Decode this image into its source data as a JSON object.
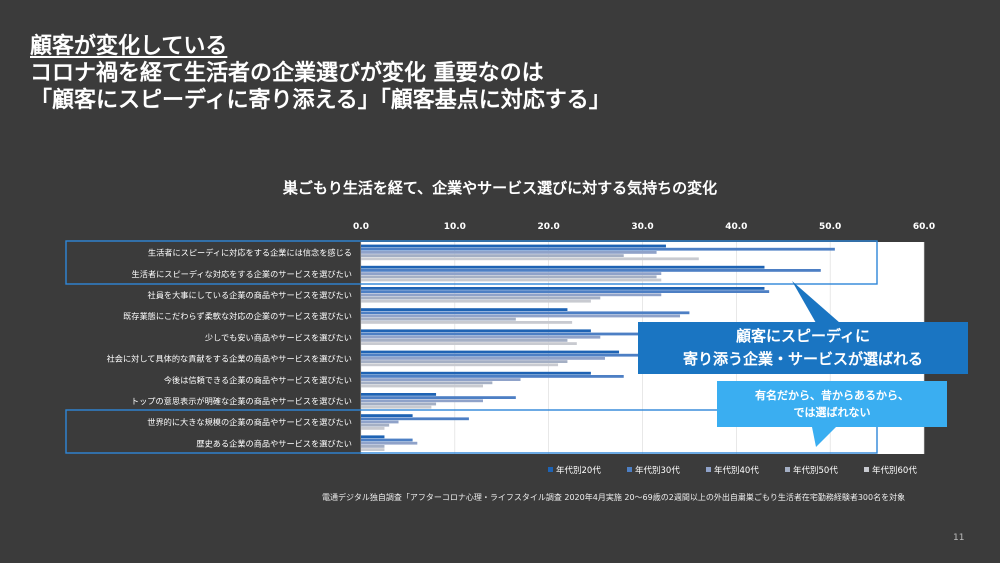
{
  "headline": {
    "line1": "顧客が変化している",
    "line2": "コロナ禍を経て生活者の企業選びが変化 重要なのは",
    "line3": "「顧客にスピーディに寄り添える」「顧客基点に対応する」"
  },
  "callouts": {
    "blue_line1": "顧客にスピーディに",
    "blue_line2": "寄り添う企業・サービスが選ばれる",
    "light_line1": "有名だから、昔からあるから、",
    "light_line2": "では選ばれない"
  },
  "source": "電通デジタル独自調査「アフターコロナ心理・ライフスタイル調査 2020年4月実施 20〜69歳の2週間以上の外出自粛巣ごもり生活者在宅勤務経験者300名を対象",
  "page_number": "11",
  "colors": {
    "background": "#3b3b3b",
    "callout_blue": "#1a75c2",
    "callout_light": "#3aaef1",
    "highlight_box": "#2e86d8"
  },
  "chart_data": {
    "type": "bar",
    "orientation": "horizontal",
    "title": "巣ごもり生活を経て、企業やサービス選びに対する気持ちの変化",
    "xlim": [
      0,
      60
    ],
    "ticks": [
      "0.0",
      "10.0",
      "20.0",
      "30.0",
      "40.0",
      "50.0",
      "60.0"
    ],
    "legend_position": "bottom",
    "categories": [
      "生活者にスピーディに対応をする企業には信念を感じる",
      "生活者にスピーディな対応をする企業のサービスを選びたい",
      "社員を大事にしている企業の商品やサービスを選びたい",
      "既存業態にこだわらず柔軟な対応の企業のサービスを選びたい",
      "少しでも安い商品やサービスを選びたい",
      "社会に対して具体的な貢献をする企業の商品やサービスを選びたい",
      "今後は信頼できる企業の商品やサービスを選びたい",
      "トップの意思表示が明確な企業の商品やサービスを選びたい",
      "世界的に大きな規模の企業の商品やサービスを選びたい",
      "歴史ある企業の商品やサービスを選びたい"
    ],
    "series": [
      {
        "name": "年代別20代",
        "color": "#1e63b4",
        "values": [
          32.5,
          43.0,
          43.0,
          22.0,
          24.5,
          27.5,
          24.5,
          8.0,
          5.5,
          2.5
        ]
      },
      {
        "name": "年代別30代",
        "color": "#4d7fc4",
        "values": [
          50.5,
          49.0,
          43.5,
          35.0,
          30.5,
          33.0,
          28.0,
          16.5,
          11.5,
          5.5
        ]
      },
      {
        "name": "年代別40代",
        "color": "#8fa2c9",
        "values": [
          31.5,
          32.0,
          32.0,
          34.0,
          25.5,
          26.0,
          17.0,
          13.0,
          4.0,
          6.0
        ]
      },
      {
        "name": "年代別50代",
        "color": "#a4afc4",
        "values": [
          28.0,
          31.5,
          25.5,
          16.5,
          22.0,
          22.0,
          14.0,
          8.0,
          3.0,
          2.5
        ]
      },
      {
        "name": "年代別60代",
        "color": "#c8cad0",
        "values": [
          36.0,
          32.0,
          24.5,
          22.5,
          23.0,
          21.0,
          13.0,
          7.5,
          2.5,
          2.5
        ]
      }
    ]
  }
}
